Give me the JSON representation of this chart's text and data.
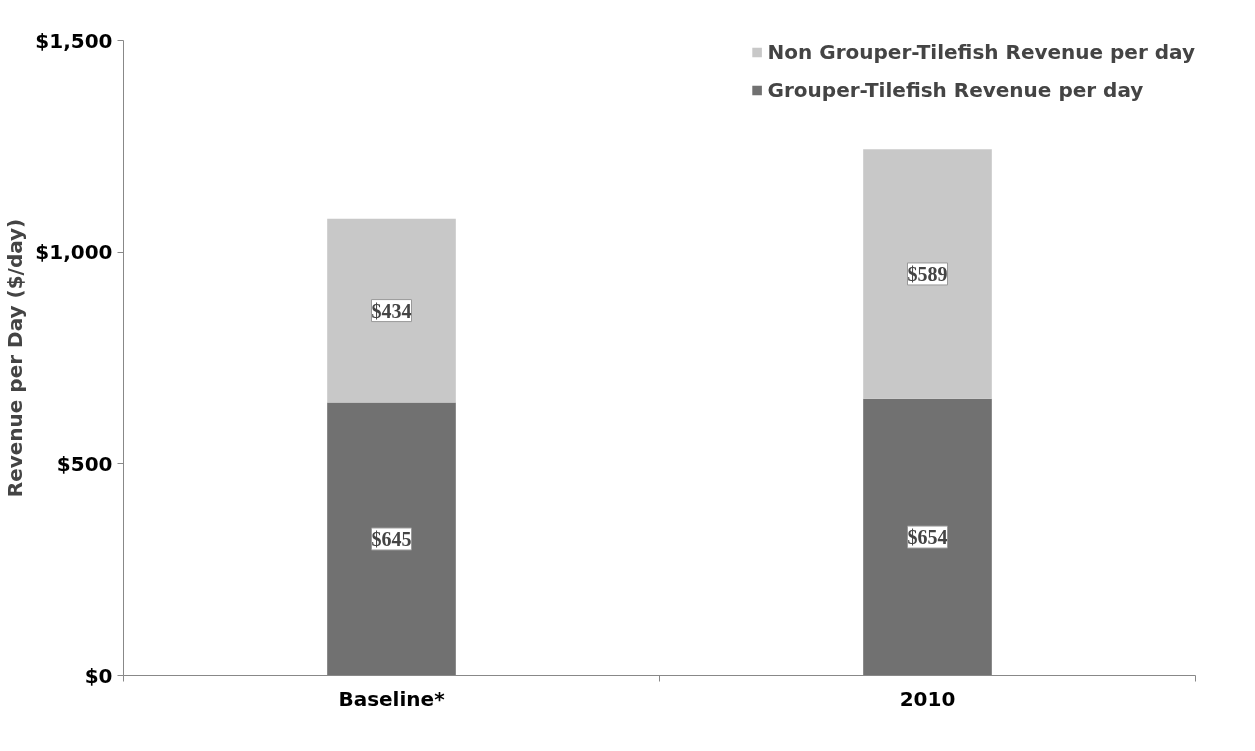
{
  "chart_data": {
    "type": "bar",
    "stacked": true,
    "categories": [
      "Baseline*",
      "2010"
    ],
    "ylabel": "Revenue per Day ($/day)",
    "ylim": [
      0,
      1500
    ],
    "yticks": [
      {
        "value": 0,
        "label": "$0"
      },
      {
        "value": 500,
        "label": "$500"
      },
      {
        "value": 1000,
        "label": "$1,000"
      },
      {
        "value": 1500,
        "label": "$1,500"
      }
    ],
    "series": [
      {
        "name": "Grouper-Tilefish Revenue per day",
        "color": "#717171",
        "values": [
          645,
          654
        ],
        "value_labels": [
          "$645",
          "$654"
        ]
      },
      {
        "name": "Non Grouper-Tilefish Revenue per day",
        "color": "#c8c8c8",
        "values": [
          434,
          589
        ],
        "value_labels": [
          "$434",
          "$589"
        ]
      }
    ],
    "grid": false,
    "legend": "top right"
  }
}
